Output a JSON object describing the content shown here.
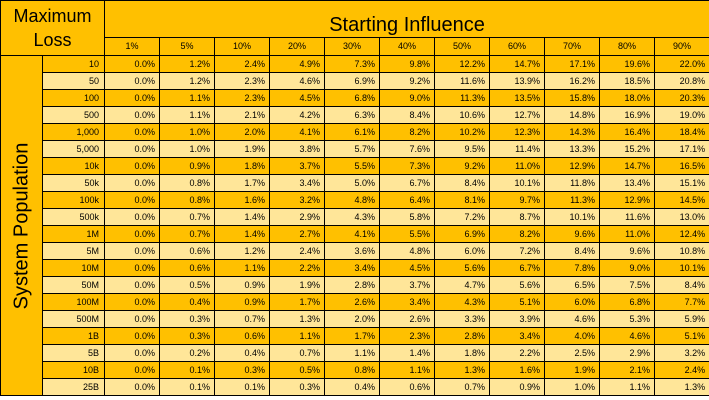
{
  "corner_label_line1": "Maximum",
  "corner_label_line2": "Loss",
  "column_group_title": "Starting Influence",
  "row_group_title": "System Population",
  "columns": [
    "1%",
    "5%",
    "10%",
    "20%",
    "30%",
    "40%",
    "50%",
    "60%",
    "70%",
    "80%",
    "90%"
  ],
  "rows": [
    {
      "label": "10",
      "values": [
        "0.0%",
        "1.2%",
        "2.4%",
        "4.9%",
        "7.3%",
        "9.8%",
        "12.2%",
        "14.7%",
        "17.1%",
        "19.6%",
        "22.0%"
      ]
    },
    {
      "label": "50",
      "values": [
        "0.0%",
        "1.2%",
        "2.3%",
        "4.6%",
        "6.9%",
        "9.2%",
        "11.6%",
        "13.9%",
        "16.2%",
        "18.5%",
        "20.8%"
      ]
    },
    {
      "label": "100",
      "values": [
        "0.0%",
        "1.1%",
        "2.3%",
        "4.5%",
        "6.8%",
        "9.0%",
        "11.3%",
        "13.5%",
        "15.8%",
        "18.0%",
        "20.3%"
      ]
    },
    {
      "label": "500",
      "values": [
        "0.0%",
        "1.1%",
        "2.1%",
        "4.2%",
        "6.3%",
        "8.4%",
        "10.6%",
        "12.7%",
        "14.8%",
        "16.9%",
        "19.0%"
      ]
    },
    {
      "label": "1,000",
      "values": [
        "0.0%",
        "1.0%",
        "2.0%",
        "4.1%",
        "6.1%",
        "8.2%",
        "10.2%",
        "12.3%",
        "14.3%",
        "16.4%",
        "18.4%"
      ]
    },
    {
      "label": "5,000",
      "values": [
        "0.0%",
        "1.0%",
        "1.9%",
        "3.8%",
        "5.7%",
        "7.6%",
        "9.5%",
        "11.4%",
        "13.3%",
        "15.2%",
        "17.1%"
      ]
    },
    {
      "label": "10k",
      "values": [
        "0.0%",
        "0.9%",
        "1.8%",
        "3.7%",
        "5.5%",
        "7.3%",
        "9.2%",
        "11.0%",
        "12.9%",
        "14.7%",
        "16.5%"
      ]
    },
    {
      "label": "50k",
      "values": [
        "0.0%",
        "0.8%",
        "1.7%",
        "3.4%",
        "5.0%",
        "6.7%",
        "8.4%",
        "10.1%",
        "11.8%",
        "13.4%",
        "15.1%"
      ]
    },
    {
      "label": "100k",
      "values": [
        "0.0%",
        "0.8%",
        "1.6%",
        "3.2%",
        "4.8%",
        "6.4%",
        "8.1%",
        "9.7%",
        "11.3%",
        "12.9%",
        "14.5%"
      ]
    },
    {
      "label": "500k",
      "values": [
        "0.0%",
        "0.7%",
        "1.4%",
        "2.9%",
        "4.3%",
        "5.8%",
        "7.2%",
        "8.7%",
        "10.1%",
        "11.6%",
        "13.0%"
      ]
    },
    {
      "label": "1M",
      "values": [
        "0.0%",
        "0.7%",
        "1.4%",
        "2.7%",
        "4.1%",
        "5.5%",
        "6.9%",
        "8.2%",
        "9.6%",
        "11.0%",
        "12.4%"
      ]
    },
    {
      "label": "5M",
      "values": [
        "0.0%",
        "0.6%",
        "1.2%",
        "2.4%",
        "3.6%",
        "4.8%",
        "6.0%",
        "7.2%",
        "8.4%",
        "9.6%",
        "10.8%"
      ]
    },
    {
      "label": "10M",
      "values": [
        "0.0%",
        "0.6%",
        "1.1%",
        "2.2%",
        "3.4%",
        "4.5%",
        "5.6%",
        "6.7%",
        "7.8%",
        "9.0%",
        "10.1%"
      ]
    },
    {
      "label": "50M",
      "values": [
        "0.0%",
        "0.5%",
        "0.9%",
        "1.9%",
        "2.8%",
        "3.7%",
        "4.7%",
        "5.6%",
        "6.5%",
        "7.5%",
        "8.4%"
      ]
    },
    {
      "label": "100M",
      "values": [
        "0.0%",
        "0.4%",
        "0.9%",
        "1.7%",
        "2.6%",
        "3.4%",
        "4.3%",
        "5.1%",
        "6.0%",
        "6.8%",
        "7.7%"
      ]
    },
    {
      "label": "500M",
      "values": [
        "0.0%",
        "0.3%",
        "0.7%",
        "1.3%",
        "2.0%",
        "2.6%",
        "3.3%",
        "3.9%",
        "4.6%",
        "5.3%",
        "5.9%"
      ]
    },
    {
      "label": "1B",
      "values": [
        "0.0%",
        "0.3%",
        "0.6%",
        "1.1%",
        "1.7%",
        "2.3%",
        "2.8%",
        "3.4%",
        "4.0%",
        "4.6%",
        "5.1%"
      ]
    },
    {
      "label": "5B",
      "values": [
        "0.0%",
        "0.2%",
        "0.4%",
        "0.7%",
        "1.1%",
        "1.4%",
        "1.8%",
        "2.2%",
        "2.5%",
        "2.9%",
        "3.2%"
      ]
    },
    {
      "label": "10B",
      "values": [
        "0.0%",
        "0.1%",
        "0.3%",
        "0.5%",
        "0.8%",
        "1.1%",
        "1.3%",
        "1.6%",
        "1.9%",
        "2.1%",
        "2.4%"
      ]
    },
    {
      "label": "25B",
      "values": [
        "0.0%",
        "0.1%",
        "0.1%",
        "0.3%",
        "0.4%",
        "0.6%",
        "0.7%",
        "0.9%",
        "1.0%",
        "1.1%",
        "1.3%"
      ]
    }
  ],
  "colors": {
    "header_fill": "#ffc000",
    "band_dark": "#ffc000",
    "band_light": "#ffe699"
  }
}
